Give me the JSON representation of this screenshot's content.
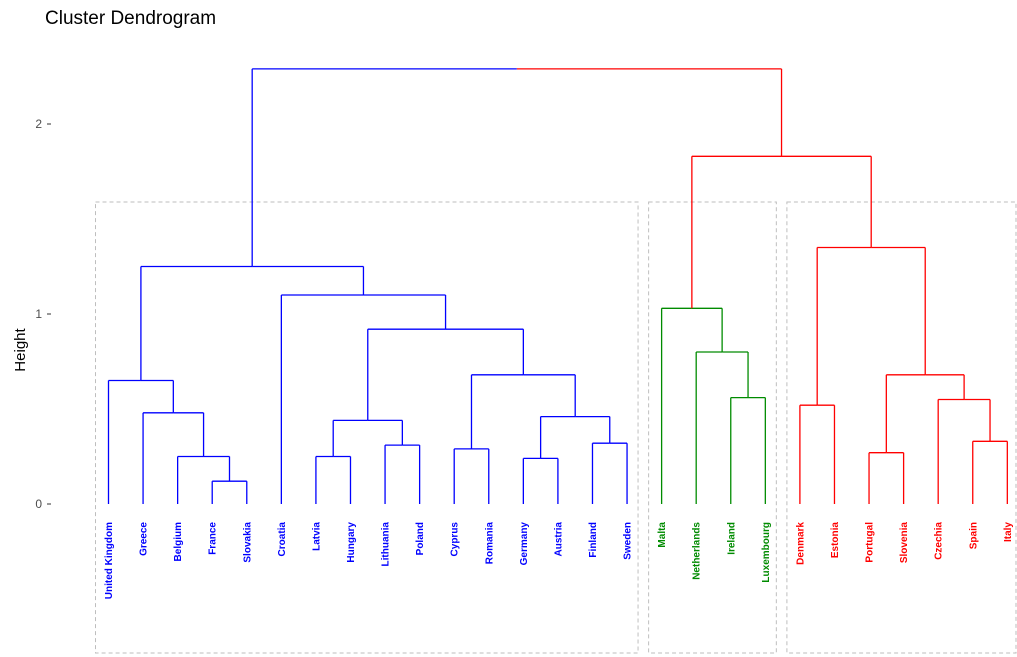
{
  "title": "Cluster Dendrogram",
  "colors": {
    "blue": "#0000ff",
    "green": "#008b00",
    "red": "#ff0000",
    "root": "#000000",
    "box": "#bebebe"
  },
  "chart_data": {
    "type": "dendrogram",
    "title": "Cluster Dendrogram",
    "ylabel": "Height",
    "xlabel": "",
    "ylim": [
      -0.78,
      2.36
    ],
    "yticks": [
      0,
      1,
      2
    ],
    "grid": false,
    "leaves": [
      {
        "label": "United Kingdom",
        "cluster": "blue"
      },
      {
        "label": "Greece",
        "cluster": "blue"
      },
      {
        "label": "Belgium",
        "cluster": "blue"
      },
      {
        "label": "France",
        "cluster": "blue"
      },
      {
        "label": "Slovakia",
        "cluster": "blue"
      },
      {
        "label": "Croatia",
        "cluster": "blue"
      },
      {
        "label": "Latvia",
        "cluster": "blue"
      },
      {
        "label": "Hungary",
        "cluster": "blue"
      },
      {
        "label": "Lithuania",
        "cluster": "blue"
      },
      {
        "label": "Poland",
        "cluster": "blue"
      },
      {
        "label": "Cyprus",
        "cluster": "blue"
      },
      {
        "label": "Romania",
        "cluster": "blue"
      },
      {
        "label": "Germany",
        "cluster": "blue"
      },
      {
        "label": "Austria",
        "cluster": "blue"
      },
      {
        "label": "Finland",
        "cluster": "blue"
      },
      {
        "label": "Sweden",
        "cluster": "blue"
      },
      {
        "label": "Malta",
        "cluster": "green"
      },
      {
        "label": "Netherlands",
        "cluster": "green"
      },
      {
        "label": "Ireland",
        "cluster": "green"
      },
      {
        "label": "Luxembourg",
        "cluster": "green"
      },
      {
        "label": "Denmark",
        "cluster": "red"
      },
      {
        "label": "Estonia",
        "cluster": "red"
      },
      {
        "label": "Portugal",
        "cluster": "red"
      },
      {
        "label": "Slovenia",
        "cluster": "red"
      },
      {
        "label": "Czechia",
        "cluster": "red"
      },
      {
        "label": "Spain",
        "cluster": "red"
      },
      {
        "label": "Italy",
        "cluster": "red"
      }
    ],
    "merges": [
      {
        "left": 3,
        "right": 4,
        "height": 0.12,
        "cluster": "blue"
      },
      {
        "left": 2,
        "right": "m0",
        "height": 0.25,
        "cluster": "blue"
      },
      {
        "left": 1,
        "right": "m1",
        "height": 0.48,
        "cluster": "blue"
      },
      {
        "left": 0,
        "right": "m2",
        "height": 0.65,
        "cluster": "blue"
      },
      {
        "left": 6,
        "right": 7,
        "height": 0.25,
        "cluster": "blue"
      },
      {
        "left": 8,
        "right": 9,
        "height": 0.31,
        "cluster": "blue"
      },
      {
        "left": "m4",
        "right": "m5",
        "height": 0.44,
        "cluster": "blue"
      },
      {
        "left": 10,
        "right": 11,
        "height": 0.29,
        "cluster": "blue"
      },
      {
        "left": 12,
        "right": 13,
        "height": 0.24,
        "cluster": "blue"
      },
      {
        "left": 14,
        "right": 15,
        "height": 0.32,
        "cluster": "blue"
      },
      {
        "left": "m8",
        "right": "m9",
        "height": 0.46,
        "cluster": "blue"
      },
      {
        "left": "m7",
        "right": "m10",
        "height": 0.68,
        "cluster": "blue"
      },
      {
        "left": "m6",
        "right": "m11",
        "height": 0.92,
        "cluster": "blue"
      },
      {
        "left": 5,
        "right": "m12",
        "height": 1.1,
        "cluster": "blue"
      },
      {
        "left": "m3",
        "right": "m13",
        "height": 1.25,
        "cluster": "blue"
      },
      {
        "left": 18,
        "right": 19,
        "height": 0.56,
        "cluster": "green"
      },
      {
        "left": 17,
        "right": "m15",
        "height": 0.8,
        "cluster": "green"
      },
      {
        "left": 16,
        "right": "m16",
        "height": 1.03,
        "cluster": "green"
      },
      {
        "left": 20,
        "right": 21,
        "height": 0.52,
        "cluster": "red"
      },
      {
        "left": 22,
        "right": 23,
        "height": 0.27,
        "cluster": "red"
      },
      {
        "left": 25,
        "right": 26,
        "height": 0.33,
        "cluster": "red"
      },
      {
        "left": 24,
        "right": "m20",
        "height": 0.55,
        "cluster": "red"
      },
      {
        "left": "m19",
        "right": "m21",
        "height": 0.68,
        "cluster": "red"
      },
      {
        "left": "m18",
        "right": "m22",
        "height": 1.35,
        "cluster": "red"
      },
      {
        "left": "m17",
        "right": "m23",
        "height": 1.83,
        "cluster": "red"
      },
      {
        "left": "m14",
        "right": "m24",
        "height": 2.29,
        "cluster": "root"
      }
    ],
    "cluster_boxes": [
      {
        "cluster": "blue",
        "first_leaf": 0,
        "last_leaf": 15
      },
      {
        "cluster": "green",
        "first_leaf": 16,
        "last_leaf": 19
      },
      {
        "cluster": "red",
        "first_leaf": 20,
        "last_leaf": 26
      }
    ]
  }
}
